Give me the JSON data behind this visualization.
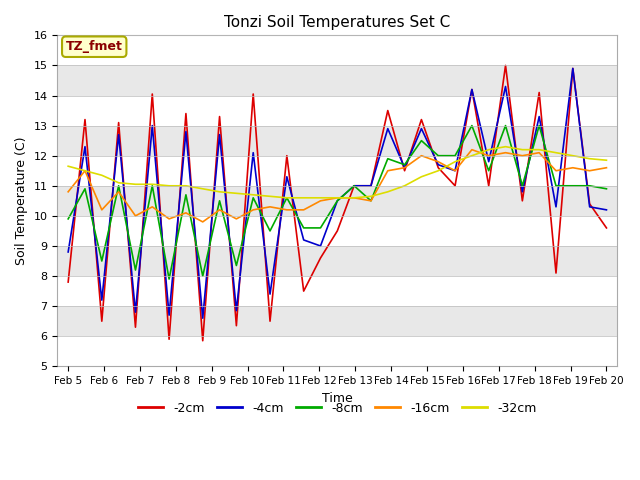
{
  "title": "Tonzi Soil Temperatures Set C",
  "xlabel": "Time",
  "ylabel": "Soil Temperature (C)",
  "annotation": "TZ_fmet",
  "ylim": [
    5.0,
    16.0
  ],
  "yticks": [
    5.0,
    6.0,
    7.0,
    8.0,
    9.0,
    10.0,
    11.0,
    12.0,
    13.0,
    14.0,
    15.0,
    16.0
  ],
  "xtick_labels": [
    "Feb 5",
    "Feb 6",
    "Feb 7",
    "Feb 8",
    "Feb 9",
    "Feb 10",
    "Feb 11",
    "Feb 12",
    "Feb 13",
    "Feb 14",
    "Feb 15",
    "Feb 16",
    "Feb 17",
    "Feb 18",
    "Feb 19",
    "Feb 20"
  ],
  "series": {
    "-2cm": {
      "color": "#dd0000",
      "data": [
        7.8,
        13.2,
        6.5,
        13.1,
        6.3,
        14.05,
        5.9,
        13.4,
        5.85,
        13.3,
        6.35,
        14.05,
        6.5,
        12.0,
        7.5,
        8.6,
        9.5,
        11.0,
        11.0,
        13.5,
        11.5,
        13.2,
        11.6,
        11.0,
        14.2,
        11.0,
        15.0,
        10.5,
        14.1,
        8.1,
        14.9,
        10.4,
        9.6
      ]
    },
    "-4cm": {
      "color": "#0000cc",
      "data": [
        8.8,
        12.3,
        7.2,
        12.7,
        6.8,
        13.0,
        6.7,
        12.8,
        6.6,
        12.7,
        6.85,
        12.1,
        7.4,
        11.3,
        9.2,
        9.0,
        10.5,
        11.0,
        11.0,
        12.9,
        11.6,
        12.9,
        11.7,
        11.5,
        14.2,
        11.8,
        14.3,
        10.8,
        13.3,
        10.3,
        14.9,
        10.3,
        10.2
      ]
    },
    "-8cm": {
      "color": "#00aa00",
      "data": [
        9.9,
        10.9,
        8.5,
        11.0,
        8.2,
        11.0,
        7.9,
        10.7,
        8.0,
        10.5,
        8.35,
        10.6,
        9.5,
        10.6,
        9.6,
        9.6,
        10.5,
        11.0,
        10.5,
        11.9,
        11.7,
        12.5,
        12.0,
        12.0,
        13.0,
        11.5,
        13.0,
        11.0,
        13.0,
        11.0,
        11.0,
        11.0,
        10.9
      ]
    },
    "-16cm": {
      "color": "#ff8800",
      "data": [
        10.8,
        11.5,
        10.2,
        10.8,
        10.0,
        10.3,
        9.9,
        10.1,
        9.8,
        10.2,
        9.9,
        10.2,
        10.3,
        10.2,
        10.2,
        10.5,
        10.6,
        10.6,
        10.5,
        11.5,
        11.6,
        12.0,
        11.8,
        11.5,
        12.2,
        12.0,
        12.1,
        12.0,
        12.1,
        11.5,
        11.6,
        11.5,
        11.6
      ]
    },
    "-32cm": {
      "color": "#dddd00",
      "data": [
        11.65,
        11.5,
        11.35,
        11.1,
        11.05,
        11.05,
        11.0,
        11.0,
        10.9,
        10.8,
        10.75,
        10.7,
        10.65,
        10.6,
        10.6,
        10.6,
        10.6,
        10.6,
        10.65,
        10.8,
        11.0,
        11.3,
        11.5,
        11.8,
        12.0,
        12.2,
        12.3,
        12.2,
        12.2,
        12.1,
        12.0,
        11.9,
        11.85
      ]
    }
  },
  "band_colors": [
    "#ffffff",
    "#e8e8e8"
  ],
  "title_fontsize": 11,
  "axis_label_fontsize": 9,
  "tick_fontsize": 8,
  "legend_fontsize": 9
}
